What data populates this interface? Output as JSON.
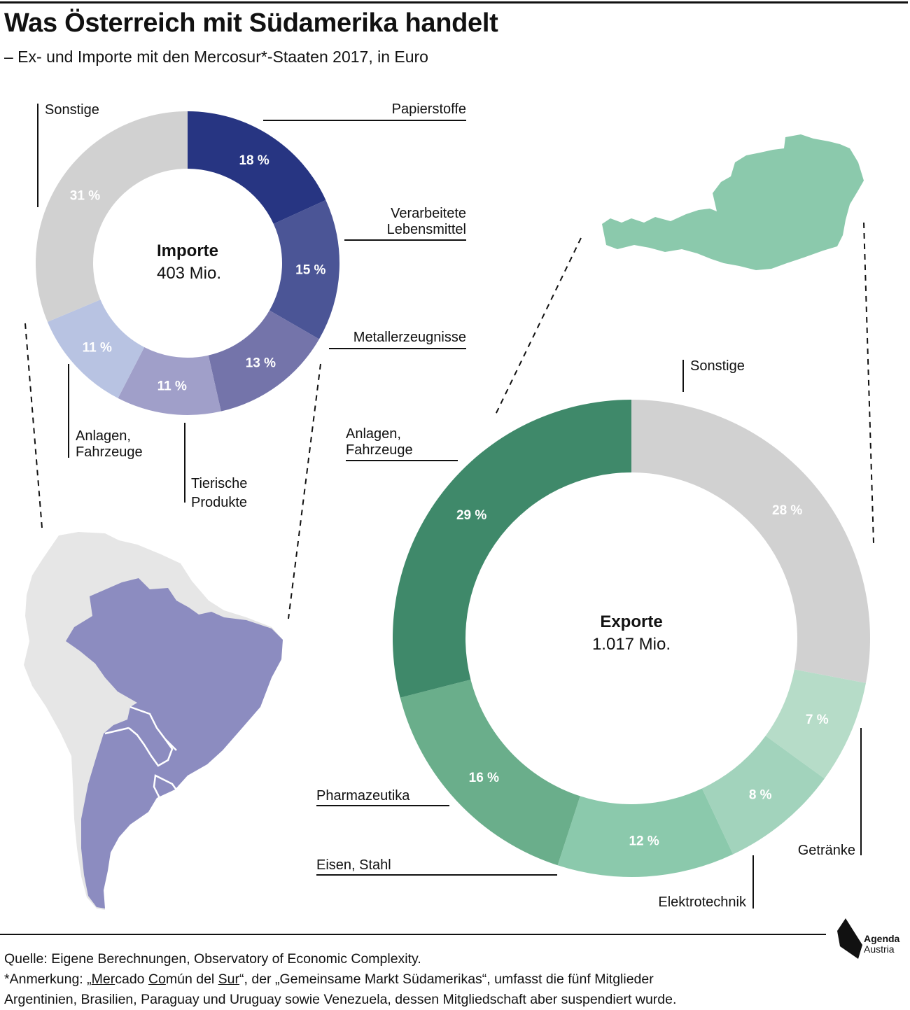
{
  "header": {
    "title": "Was Österreich mit Südamerika handelt",
    "subtitle": "– Ex- und Importe mit den Mercosur*-Staaten 2017, in Euro"
  },
  "chart_data": [
    {
      "type": "pie",
      "center_title": "Importe",
      "center_value": "403 Mio.",
      "categories": [
        "Papierstoffe",
        "Verarbeitete Lebensmittel",
        "Metallerzeugnisse",
        "Tierische Produkte",
        "Anlagen, Fahrzeuge",
        "Sonstige"
      ],
      "values": [
        18,
        15,
        13,
        11,
        11,
        31
      ],
      "value_labels": [
        "18 %",
        "15 %",
        "13 %",
        "11 %",
        "11 %",
        "31 %"
      ],
      "colors": [
        "#273582",
        "#4b5596",
        "#7474aa",
        "#a09fc9",
        "#b8c3e2",
        "#d1d1d1"
      ]
    },
    {
      "type": "pie",
      "center_title": "Exporte",
      "center_value": "1.017 Mio.",
      "categories": [
        "Sonstige",
        "Getränke",
        "Elektrotechnik",
        "Eisen, Stahl",
        "Pharmazeutika",
        "Anlagen, Fahrzeuge"
      ],
      "values": [
        28,
        7,
        8,
        12,
        16,
        29
      ],
      "value_labels": [
        "28 %",
        "7 %",
        "8 %",
        "12 %",
        "16 %",
        "29 %"
      ],
      "colors": [
        "#d1d1d1",
        "#b6dcc8",
        "#a2d3bc",
        "#8bc9ac",
        "#6aae8b",
        "#3f896a"
      ]
    }
  ],
  "labels": {
    "imports": {
      "papier": "Papierstoffe",
      "verarb1": "Verarbeitete",
      "verarb2": "Lebensmittel",
      "metall": "Metallerzeugnisse",
      "tier1": "Tierische",
      "tier2": "Produkte",
      "anlagen1": "Anlagen,",
      "anlagen2": "Fahrzeuge",
      "sonstige": "Sonstige"
    },
    "exports": {
      "sonstige": "Sonstige",
      "anlagen1": "Anlagen,",
      "anlagen2": "Fahrzeuge",
      "pharma": "Pharmazeutika",
      "eisen": "Eisen, Stahl",
      "elektro": "Elektrotechnik",
      "getraenke": "Getränke"
    }
  },
  "map_colors": {
    "mercosur": "#8c8cc0",
    "south_america": "#e6e6e6",
    "austria": "#8bc9ac"
  },
  "footer": {
    "source": "Quelle: Eigene Berechnungen, Observatory of Economic Complexity.",
    "note_prefix": "*Anmerkung: „",
    "note_u1": "Mer",
    "note_t1": "cado ",
    "note_u2": "Co",
    "note_t2": "mún del ",
    "note_u3": "Sur",
    "note_rest": "“, der „Gemeinsame Markt Südamerikas“, umfasst die fünf Mitglieder",
    "note_line2": "Argentinien, Brasilien, Paraguay und Uruguay sowie Venezuela, dessen Mitgliedschaft aber suspendiert wurde."
  },
  "logo": {
    "line1": "Agenda",
    "line2": "Austria"
  }
}
